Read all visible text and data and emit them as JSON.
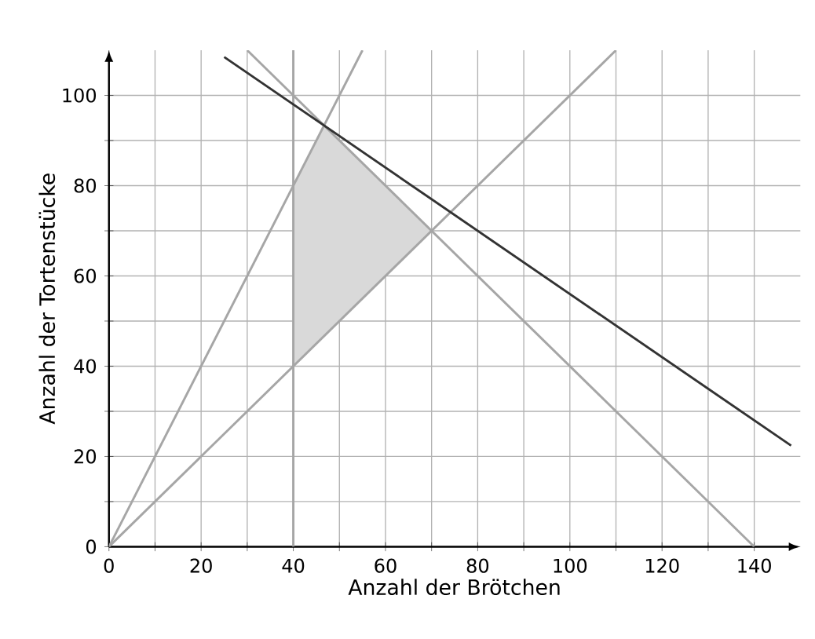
{
  "chart_data": {
    "type": "line",
    "xlabel": "Anzahl der Brötchen",
    "ylabel": "Anzahl der Tortenstücke",
    "xlim": [
      0,
      150
    ],
    "ylim": [
      0,
      110
    ],
    "xticks": [
      0,
      {
        "value": 10,
        "label": null
      },
      20,
      {
        "value": 30,
        "label": null
      },
      40,
      {
        "value": 50,
        "label": null
      },
      60,
      {
        "value": 70,
        "label": null
      },
      80,
      {
        "value": 90,
        "label": null
      },
      100,
      {
        "value": 110,
        "label": null
      },
      120,
      {
        "value": 130,
        "label": null
      },
      140
    ],
    "yticks": [
      0,
      {
        "value": 10,
        "label": null
      },
      20,
      {
        "value": 30,
        "label": null
      },
      40,
      {
        "value": 50,
        "label": null
      },
      60,
      {
        "value": 70,
        "label": null
      },
      80,
      {
        "value": 90,
        "label": null
      },
      100
    ],
    "grid": true,
    "series": [
      {
        "type": "area",
        "color": "#d9d9d9",
        "x": [
          40,
          40,
          46.7,
          70
        ],
        "values": [
          40,
          80,
          93.3,
          70
        ]
      },
      {
        "color": "#a6a6a6",
        "x": [
          40,
          40
        ],
        "values": [
          0,
          110
        ]
      },
      {
        "color": "#a6a6a6",
        "x": [
          0,
          55
        ],
        "values": [
          0,
          110
        ]
      },
      {
        "color": "#a6a6a6",
        "x": [
          0,
          110
        ],
        "values": [
          0,
          110
        ]
      },
      {
        "color": "#a6a6a6",
        "x": [
          30,
          140
        ],
        "values": [
          110,
          0
        ]
      },
      {
        "color": "#333333",
        "x": [
          25,
          148
        ],
        "values": [
          108.5,
          22.4
        ]
      }
    ]
  }
}
